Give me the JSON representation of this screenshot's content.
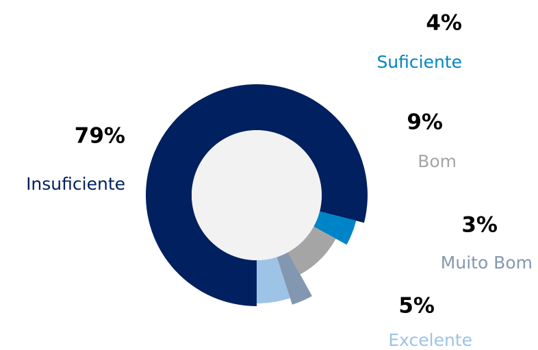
{
  "chart_data": {
    "type": "pie",
    "categories": [
      "Insuficiente",
      "Suficiente",
      "Bom",
      "Muito Bom",
      "Excelente"
    ],
    "values": [
      79,
      4,
      9,
      3,
      5
    ],
    "value_labels": [
      "79%",
      "4%",
      "9%",
      "3%",
      "5%"
    ],
    "colors": [
      "#002060",
      "#0084c8",
      "#a5a5a5",
      "#8497b0",
      "#9dc3e6"
    ]
  }
}
